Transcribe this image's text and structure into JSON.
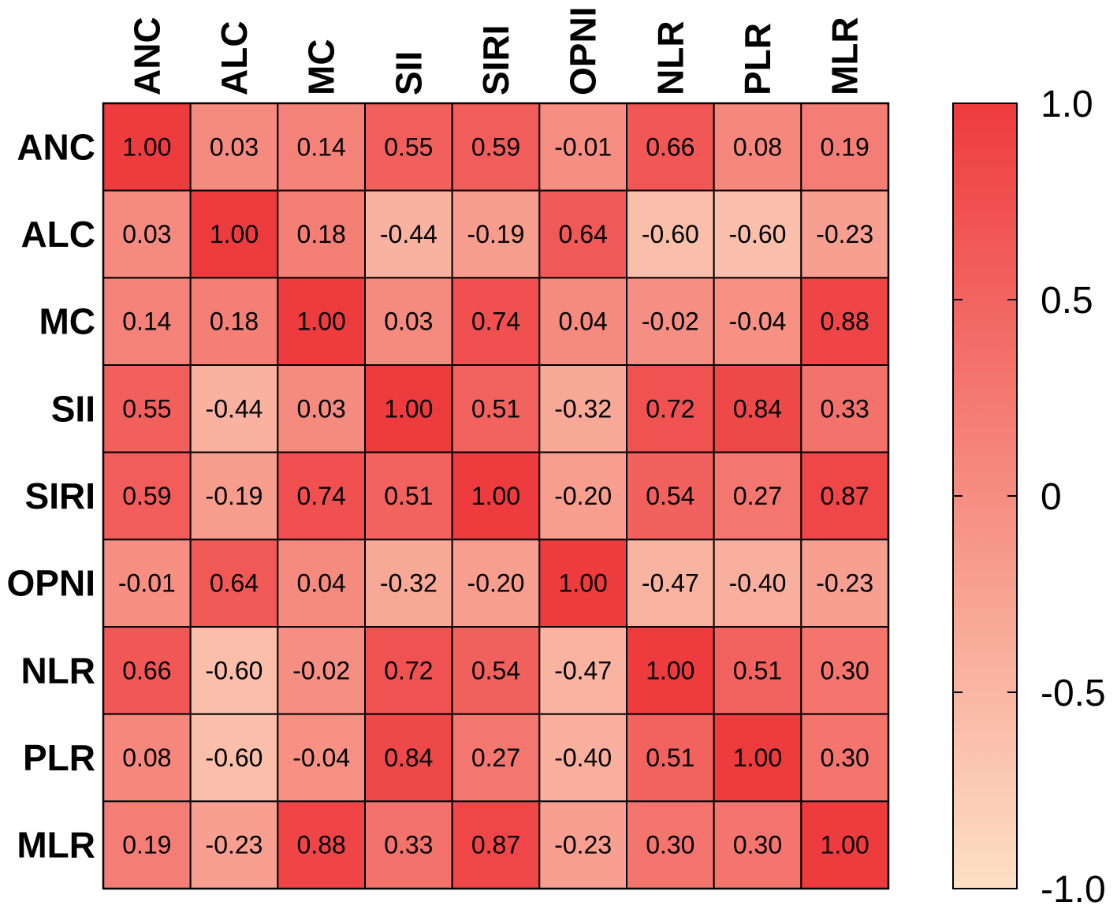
{
  "chart_data": {
    "type": "heatmap",
    "title": "",
    "variables": [
      "ANC",
      "ALC",
      "MC",
      "SII",
      "SIRI",
      "OPNI",
      "NLR",
      "PLR",
      "MLR"
    ],
    "matrix": [
      [
        1.0,
        0.03,
        0.14,
        0.55,
        0.59,
        -0.01,
        0.66,
        0.08,
        0.19
      ],
      [
        0.03,
        1.0,
        0.18,
        -0.44,
        -0.19,
        0.64,
        -0.6,
        -0.6,
        -0.23
      ],
      [
        0.14,
        0.18,
        1.0,
        0.03,
        0.74,
        0.04,
        -0.02,
        -0.04,
        0.88
      ],
      [
        0.55,
        -0.44,
        0.03,
        1.0,
        0.51,
        -0.32,
        0.72,
        0.84,
        0.33
      ],
      [
        0.59,
        -0.19,
        0.74,
        0.51,
        1.0,
        -0.2,
        0.54,
        0.27,
        0.87
      ],
      [
        -0.01,
        0.64,
        0.04,
        -0.32,
        -0.2,
        1.0,
        -0.47,
        -0.4,
        -0.23
      ],
      [
        0.66,
        -0.6,
        -0.02,
        0.72,
        0.54,
        -0.47,
        1.0,
        0.51,
        0.3
      ],
      [
        0.08,
        -0.6,
        -0.04,
        0.84,
        0.27,
        -0.4,
        0.51,
        1.0,
        0.3
      ],
      [
        0.19,
        -0.23,
        0.88,
        0.33,
        0.87,
        -0.23,
        0.3,
        0.3,
        1.0
      ]
    ],
    "value_range": [
      -1.0,
      1.0
    ],
    "colorbar": {
      "ticks": [
        1.0,
        0.5,
        0,
        -0.5,
        -1.0
      ],
      "tick_labels": [
        "1.0",
        "0.5",
        "0",
        "-0.5",
        "-1.0"
      ],
      "position": "right"
    },
    "color_low": "#fde0c5",
    "color_high": "#ee3b3e",
    "grid": true
  }
}
